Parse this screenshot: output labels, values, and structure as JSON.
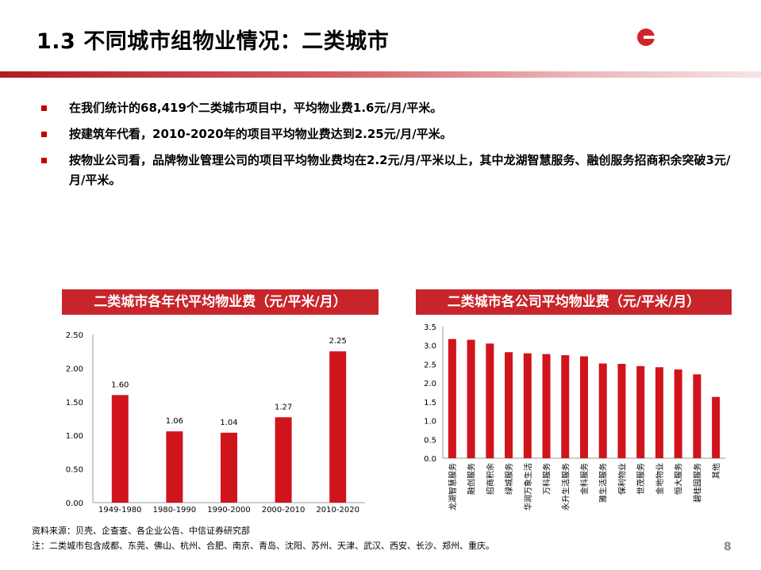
{
  "header": {
    "title": "1.3 不同城市组物业情况：二类城市",
    "colors": {
      "accent": "#c00000",
      "bar": "#d0141c"
    }
  },
  "bullets": [
    "在我们统计的68,419个二类城市项目中，平均物业费1.6元/月/平米。",
    "按建筑年代看，2010-2020年的项目平均物业费达到2.25元/月/平米。",
    "按物业公司看，品牌物业管理公司的项目平均物业费均在2.2元/月/平米以上，其中龙湖智慧服务、融创服务招商积余突破3元/月/平米。"
  ],
  "chart_titles": {
    "left": "二类城市各年代平均物业费（元/平米/月）",
    "right": "二类城市各公司平均物业费（元/平米/月）"
  },
  "chart_data": [
    {
      "type": "bar",
      "title": "二类城市各年代平均物业费（元/平米/月）",
      "categories": [
        "1949-1980",
        "1980-1990",
        "1990-2000",
        "2000-2010",
        "2010-2020"
      ],
      "values": [
        1.6,
        1.06,
        1.04,
        1.27,
        2.25
      ],
      "value_labels": [
        "1.60",
        "1.06",
        "1.04",
        "1.27",
        "2.25"
      ],
      "yticks": [
        "0.00",
        "0.50",
        "1.00",
        "1.50",
        "2.00",
        "2.50"
      ],
      "ylim": [
        0,
        2.5
      ],
      "grid": false
    },
    {
      "type": "bar",
      "title": "二类城市各公司平均物业费（元/平米/月）",
      "categories": [
        "龙湖智慧服务",
        "融创服务",
        "招商积余",
        "绿城服务",
        "华润万象生活",
        "万科服务",
        "永升生活服务",
        "金科服务",
        "雅生活服务",
        "保利物业",
        "世茂服务",
        "金地物业",
        "恒大服务",
        "碧桂园服务",
        "其他"
      ],
      "values": [
        3.17,
        3.15,
        3.05,
        2.82,
        2.79,
        2.77,
        2.74,
        2.71,
        2.52,
        2.51,
        2.45,
        2.42,
        2.36,
        2.23,
        1.63
      ],
      "yticks": [
        "0.0",
        "0.5",
        "1.0",
        "1.5",
        "2.0",
        "2.5",
        "3.0",
        "3.5"
      ],
      "ylim": [
        0,
        3.5
      ],
      "grid": false
    }
  ],
  "footer": {
    "source": "资料来源：贝壳、企查查、各企业公告、中信证券研究部",
    "note": "注：二类城市包含成都、东莞、佛山、杭州、合肥、南京、青岛、沈阳、苏州、天津、武汉、西安、长沙、郑州、重庆。",
    "page": "8"
  }
}
